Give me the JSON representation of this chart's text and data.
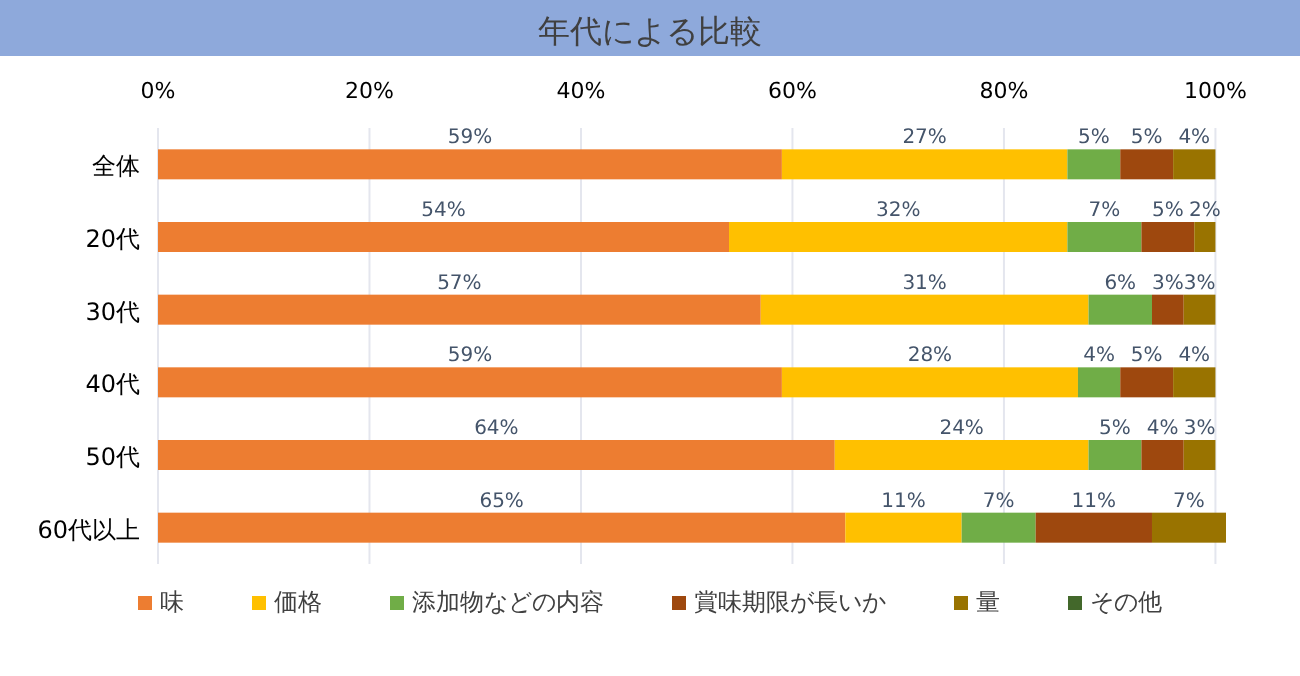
{
  "chart_data": {
    "type": "bar",
    "title": "年代による比較",
    "orientation": "horizontal",
    "stacked": true,
    "categories": [
      "全体",
      "20代",
      "30代",
      "40代",
      "50代",
      "60代以上"
    ],
    "xlim": [
      0,
      101
    ],
    "xticks": [
      {
        "value": 0,
        "label": "0%"
      },
      {
        "value": 20,
        "label": "20%"
      },
      {
        "value": 40,
        "label": "40%"
      },
      {
        "value": 60,
        "label": "60%"
      },
      {
        "value": 80,
        "label": "80%"
      },
      {
        "value": 100,
        "label": "100%"
      }
    ],
    "grid": "x",
    "legend": "bottom",
    "series": [
      {
        "name": "味",
        "color": "#ed7d31",
        "values": [
          59,
          54,
          57,
          59,
          64,
          65
        ],
        "value_labels": [
          "59%",
          "54%",
          "57%",
          "59%",
          "64%",
          "65%"
        ]
      },
      {
        "name": "価格",
        "color": "#ffc000",
        "values": [
          27,
          32,
          31,
          28,
          24,
          11
        ],
        "value_labels": [
          "27%",
          "32%",
          "31%",
          "28%",
          "24%",
          "11%"
        ]
      },
      {
        "name": "添加物などの内容",
        "color": "#70ad47",
        "values": [
          5,
          7,
          6,
          4,
          5,
          7
        ],
        "value_labels": [
          "5%",
          "7%",
          "6%",
          "4%",
          "5%",
          "7%"
        ]
      },
      {
        "name": "賞味期限が長いか",
        "color": "#9e480e",
        "values": [
          5,
          5,
          3,
          5,
          4,
          11
        ],
        "value_labels": [
          "5%",
          "5%",
          "3%",
          "5%",
          "4%",
          "11%"
        ]
      },
      {
        "name": "量",
        "color": "#997300",
        "values": [
          4,
          2,
          3,
          4,
          3,
          7
        ],
        "value_labels": [
          "4%",
          "2%",
          "3%",
          "4%",
          "3%",
          "7%"
        ]
      },
      {
        "name": "その他",
        "color": "#43682b",
        "values": [
          null,
          null,
          null,
          null,
          null,
          null
        ]
      }
    ]
  }
}
